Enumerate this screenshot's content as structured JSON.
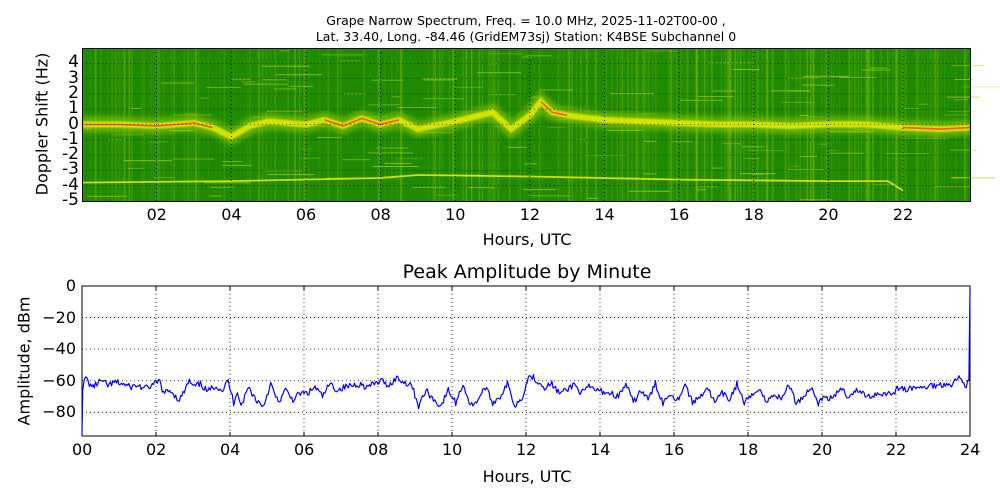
{
  "figure": {
    "title_line1": "Grape Narrow Spectrum, Freq. = 10.0 MHz, 2025-11-02T00-00 ,",
    "title_line2": "Lat.  33.40, Long. -84.46 (GridEM73sj) Station: K4BSE Subchannel 0"
  },
  "colors": {
    "spectrogram_background": "#1f8a00",
    "spectrogram_mid": "#9acd00",
    "spectrogram_high": "#f0f000",
    "spectrogram_peak": "#ff4000",
    "amplitude_line": "#0000ff",
    "grid": "#000000"
  },
  "chart_data": [
    {
      "type": "heatmap",
      "title": "Grape Narrow Spectrum, Freq. = 10.0 MHz, 2025-11-02T00-00 , Lat.  33.40, Long. -84.46 (GridEM73sj) Station: K4BSE Subchannel 0",
      "xlabel": "Hours, UTC",
      "ylabel": "Doppler Shift (Hz)",
      "xlim": [
        0,
        23.8
      ],
      "ylim": [
        -5,
        5
      ],
      "xticks": [
        "02",
        "04",
        "06",
        "08",
        "10",
        "12",
        "14",
        "16",
        "18",
        "20",
        "22"
      ],
      "yticks": [
        "4",
        "3",
        "2",
        "1",
        "0",
        "-1",
        "-2",
        "-3",
        "-4",
        "-5"
      ],
      "grid": true,
      "colormap": "green-yellow-red",
      "traces": {
        "main_carrier_hz": {
          "x": [
            0,
            1,
            2,
            3,
            3.5,
            4,
            4.5,
            5,
            6,
            6.5,
            7,
            7.5,
            8,
            8.5,
            9,
            10,
            11,
            11.5,
            12,
            12.3,
            12.6,
            13,
            14,
            15,
            16,
            17,
            18,
            19,
            20,
            21,
            22,
            23,
            23.8
          ],
          "y": [
            0,
            0,
            -0.1,
            0.1,
            -0.2,
            -0.8,
            -0.1,
            0.2,
            0,
            0.3,
            -0.1,
            0.4,
            0,
            0.3,
            -0.3,
            0.2,
            0.8,
            -0.3,
            0.6,
            1.5,
            0.8,
            0.6,
            0.3,
            0.2,
            0.1,
            0,
            0,
            -0.1,
            0,
            0,
            -0.2,
            -0.3,
            -0.2
          ]
        },
        "secondary_line_hz": {
          "x": [
            0,
            4,
            8,
            9,
            12,
            16,
            20,
            21.6,
            22
          ],
          "y": [
            -3.8,
            -3.7,
            -3.5,
            -3.3,
            -3.4,
            -3.6,
            -3.7,
            -3.7,
            -4.3
          ]
        }
      }
    },
    {
      "type": "line",
      "title": "Peak Amplitude by Minute",
      "xlabel": "Hours, UTC",
      "ylabel": "Amplitude, dBm",
      "xlim": [
        0,
        24
      ],
      "ylim": [
        -95,
        0
      ],
      "xticks": [
        "00",
        "02",
        "04",
        "06",
        "08",
        "10",
        "12",
        "14",
        "16",
        "18",
        "20",
        "22",
        "24"
      ],
      "yticks": [
        "0",
        "−20",
        "−40",
        "−60",
        "−80"
      ],
      "grid": true,
      "series": [
        {
          "name": "Peak Amplitude",
          "x": [
            0,
            0.02,
            0.1,
            0.2,
            0.3,
            0.5,
            0.7,
            0.9,
            1.1,
            1.3,
            1.5,
            1.7,
            1.9,
            2.1,
            2.2,
            2.4,
            2.6,
            2.7,
            2.9,
            3.0,
            3.2,
            3.4,
            3.6,
            3.8,
            3.95,
            4.1,
            4.2,
            4.3,
            4.4,
            4.5,
            4.7,
            4.9,
            5.1,
            5.3,
            5.5,
            5.7,
            5.9,
            6.1,
            6.3,
            6.5,
            6.7,
            6.9,
            7.1,
            7.3,
            7.5,
            7.7,
            7.9,
            8.1,
            8.3,
            8.5,
            8.7,
            8.9,
            9.1,
            9.3,
            9.5,
            9.7,
            9.9,
            10.1,
            10.3,
            10.5,
            10.7,
            10.9,
            11.1,
            11.3,
            11.5,
            11.7,
            11.9,
            12.1,
            12.3,
            12.5,
            12.7,
            12.9,
            13.1,
            13.3,
            13.5,
            13.7,
            13.9,
            14.1,
            14.3,
            14.5,
            14.7,
            14.9,
            15.1,
            15.3,
            15.5,
            15.7,
            15.9,
            16.1,
            16.3,
            16.5,
            16.7,
            16.9,
            17.1,
            17.3,
            17.5,
            17.7,
            17.9,
            18.1,
            18.3,
            18.5,
            18.7,
            18.9,
            19.1,
            19.3,
            19.5,
            19.7,
            19.9,
            20.1,
            20.3,
            20.5,
            20.7,
            20.9,
            21.1,
            21.3,
            21.5,
            21.7,
            21.9,
            22.1,
            22.3,
            22.5,
            22.7,
            22.9,
            23.1,
            23.3,
            23.5,
            23.7,
            23.9,
            23.97,
            24.0
          ],
          "values": [
            -95,
            -64,
            -58,
            -62,
            -64,
            -60,
            -63,
            -61,
            -62,
            -64,
            -63,
            -65,
            -63,
            -60,
            -68,
            -66,
            -72,
            -70,
            -60,
            -64,
            -62,
            -67,
            -63,
            -66,
            -60,
            -74,
            -66,
            -76,
            -70,
            -64,
            -72,
            -76,
            -62,
            -74,
            -66,
            -72,
            -68,
            -68,
            -64,
            -70,
            -62,
            -66,
            -64,
            -63,
            -62,
            -64,
            -62,
            -60,
            -63,
            -58,
            -61,
            -62,
            -76,
            -66,
            -72,
            -76,
            -66,
            -74,
            -62,
            -76,
            -72,
            -64,
            -74,
            -70,
            -62,
            -76,
            -70,
            -56,
            -60,
            -64,
            -62,
            -68,
            -66,
            -62,
            -68,
            -64,
            -66,
            -67,
            -68,
            -70,
            -62,
            -74,
            -66,
            -72,
            -62,
            -74,
            -68,
            -72,
            -62,
            -74,
            -70,
            -64,
            -74,
            -68,
            -72,
            -62,
            -74,
            -70,
            -64,
            -74,
            -68,
            -72,
            -62,
            -74,
            -70,
            -64,
            -74,
            -70,
            -72,
            -64,
            -70,
            -66,
            -68,
            -70,
            -68,
            -68,
            -68,
            -64,
            -66,
            -64,
            -65,
            -63,
            -63,
            -62,
            -62,
            -58,
            -63,
            -60,
            -2
          ]
        }
      ]
    }
  ],
  "spectrogram": {
    "xlabel": "Hours, UTC",
    "ylabel": "Doppler Shift (Hz)",
    "xticks": [
      "02",
      "04",
      "06",
      "08",
      "10",
      "12",
      "14",
      "16",
      "18",
      "20",
      "22"
    ],
    "yticks": [
      "4",
      "3",
      "2",
      "1",
      "0",
      "-1",
      "-2",
      "-3",
      "-4",
      "-5"
    ]
  },
  "amplitude": {
    "title": "Peak Amplitude by Minute",
    "xlabel": "Hours, UTC",
    "ylabel": "Amplitude, dBm",
    "xticks": [
      "00",
      "02",
      "04",
      "06",
      "08",
      "10",
      "12",
      "14",
      "16",
      "18",
      "20",
      "22",
      "24"
    ],
    "yticks": [
      "0",
      "−20",
      "−40",
      "−60",
      "−80"
    ]
  }
}
